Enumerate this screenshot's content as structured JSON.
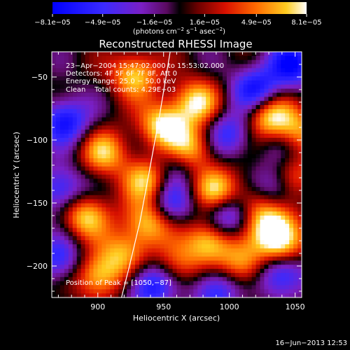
{
  "chart_data": {
    "type": "heatmap",
    "title": "Reconstructed RHESSI Image",
    "xlabel": "Heliocentric X (arcsec)",
    "ylabel": "Heliocentric Y (arcsec)",
    "xlim": [
      865,
      1055
    ],
    "ylim": [
      -225,
      -30
    ],
    "x_ticks": [
      900,
      950,
      1000,
      1050
    ],
    "x_tick_labels": [
      "900",
      "950",
      "1000",
      "1050"
    ],
    "y_ticks": [
      -50,
      -100,
      -150,
      -200
    ],
    "y_tick_labels": [
      "−50",
      "−100",
      "−150",
      "−200"
    ],
    "colorbar": {
      "min": -8.1e-05,
      "max": 8.1e-05,
      "tick_values": [
        -8.1e-05,
        -4.9e-05,
        -1.6e-05,
        1.6e-05,
        4.9e-05,
        8.1e-05
      ],
      "tick_labels": [
        "−8.1e−05",
        "−4.9e−05",
        "−1.6e−05",
        "1.6e−05",
        "4.9e−05",
        "8.1e−05"
      ],
      "units_main": "(photons cm",
      "units_exp1": "−2",
      "units_mid": " s",
      "units_exp2": "−1",
      "units_end": " asec",
      "units_exp3": "−2",
      "units_close": ")"
    },
    "annotations": [
      "23−Apr−2004 15:47:02.000 to 15:53:02.000",
      "Detectors: 4F 5F 6F 7F 8F, Att 0",
      "Energy Range: 25.0 − 50.0 keV",
      "Clean    Total counts: 4.29E+03"
    ],
    "peak_label": "Position of Peak = [1050,−87]",
    "limb_curve": [
      [
        955,
        -30
      ],
      [
        947,
        -80
      ],
      [
        940,
        -120
      ],
      [
        932,
        -165
      ],
      [
        924,
        -200
      ],
      [
        918,
        -225
      ]
    ],
    "hot_spots": [
      [
        928,
        -48,
        0.9
      ],
      [
        950,
        -88,
        1.0
      ],
      [
        975,
        -70,
        0.9
      ],
      [
        1030,
        -82,
        1.0
      ],
      [
        1050,
        -95,
        1.0
      ],
      [
        970,
        -108,
        1.0
      ],
      [
        905,
        -110,
        0.8
      ],
      [
        938,
        -132,
        0.9
      ],
      [
        990,
        -140,
        0.9
      ],
      [
        1020,
        -150,
        0.7
      ],
      [
        890,
        -160,
        0.9
      ],
      [
        938,
        -165,
        0.9
      ],
      [
        985,
        -180,
        1.0
      ],
      [
        1035,
        -168,
        1.0
      ],
      [
        1040,
        -185,
        0.9
      ],
      [
        900,
        -208,
        0.9
      ],
      [
        920,
        -190,
        0.7
      ],
      [
        1010,
        -200,
        0.8
      ],
      [
        960,
        -200,
        0.6
      ],
      [
        1050,
        -130,
        0.6
      ]
    ],
    "cold_spots": [
      [
        1048,
        -40,
        0.9
      ],
      [
        1020,
        -60,
        0.9
      ],
      [
        1000,
        -95,
        0.7
      ],
      [
        875,
        -85,
        0.9
      ],
      [
        1042,
        -100,
        0.6
      ],
      [
        872,
        -140,
        0.8
      ],
      [
        955,
        -150,
        0.7
      ],
      [
        1035,
        -140,
        0.8
      ],
      [
        960,
        -118,
        0.6
      ],
      [
        1000,
        -160,
        0.9
      ],
      [
        1040,
        -205,
        1.0
      ],
      [
        940,
        -215,
        0.9
      ],
      [
        990,
        -218,
        0.8
      ],
      [
        870,
        -195,
        0.7
      ]
    ]
  },
  "footer": {
    "date": "16−Jun−2013 12:53"
  }
}
